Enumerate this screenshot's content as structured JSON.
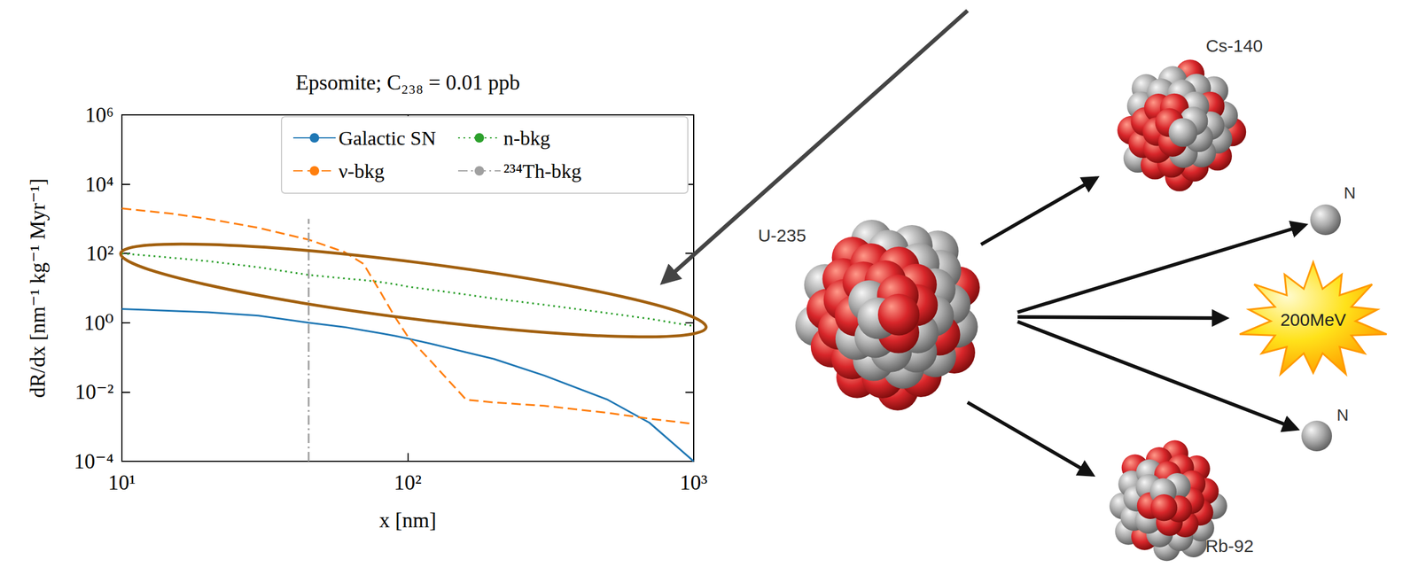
{
  "chart_data": {
    "type": "line",
    "title": "Epsomite; C₂₃₈ = 0.01 ppb",
    "x_label": "x [nm]",
    "y_label": "dR/dx [nm⁻¹ kg⁻¹ Myr⁻¹]",
    "x": [
      10,
      15,
      20,
      30,
      45,
      60,
      70,
      80,
      90,
      100,
      120,
      160,
      200,
      300,
      500,
      700,
      1000
    ],
    "series": [
      {
        "name": "Galactic SN",
        "color": "#1f77b4",
        "line_style": "solid",
        "values": [
          2.5,
          2.2,
          2.0,
          1.6,
          1.0,
          0.75,
          0.6,
          0.5,
          0.42,
          0.35,
          0.25,
          0.14,
          0.09,
          0.03,
          0.006,
          0.0013,
          0.0001
        ]
      },
      {
        "name": "ν-bkg",
        "color": "#ff7f0e",
        "line_style": "dashed",
        "values": [
          2000,
          1400,
          1000,
          550,
          250,
          110,
          50,
          8,
          1.5,
          0.4,
          0.08,
          0.006,
          0.005,
          0.004,
          0.0025,
          0.0017,
          0.0012
        ]
      },
      {
        "name": "n-bkg",
        "color": "#2ca02c",
        "line_style": "dotted",
        "values": [
          100,
          75,
          60,
          40,
          24,
          19,
          17,
          15,
          13,
          11,
          9,
          6.5,
          5,
          3.3,
          1.9,
          1.3,
          0.8
        ]
      },
      {
        "name": "²³⁴Th-bkg",
        "color": "#a0a0a0",
        "line_style": "dashdot",
        "x": [
          45,
          45
        ],
        "values": [
          0.0001,
          1000
        ]
      }
    ],
    "log": true,
    "xlim": [
      10,
      1000
    ],
    "ylim": [
      0.0001,
      1000000
    ],
    "xticks": [
      {
        "value": 10,
        "label": "10¹"
      },
      {
        "value": 100,
        "label": "10²"
      },
      {
        "value": 1000,
        "label": "10³"
      }
    ],
    "yticks": [
      {
        "value": 0.0001,
        "label": "10⁻⁴"
      },
      {
        "value": 0.01,
        "label": "10⁻²"
      },
      {
        "value": 1,
        "label": "10⁰"
      },
      {
        "value": 100,
        "label": "10²"
      },
      {
        "value": 10000,
        "label": "10⁴"
      },
      {
        "value": 1000000,
        "label": "10⁶"
      }
    ],
    "legend": "upper right",
    "grid": false
  },
  "diagram": {
    "nucleus": "U-235",
    "products": [
      "Cs-140",
      "Rb-92"
    ],
    "neutrons": [
      "N",
      "N"
    ],
    "energy": "200MeV"
  }
}
